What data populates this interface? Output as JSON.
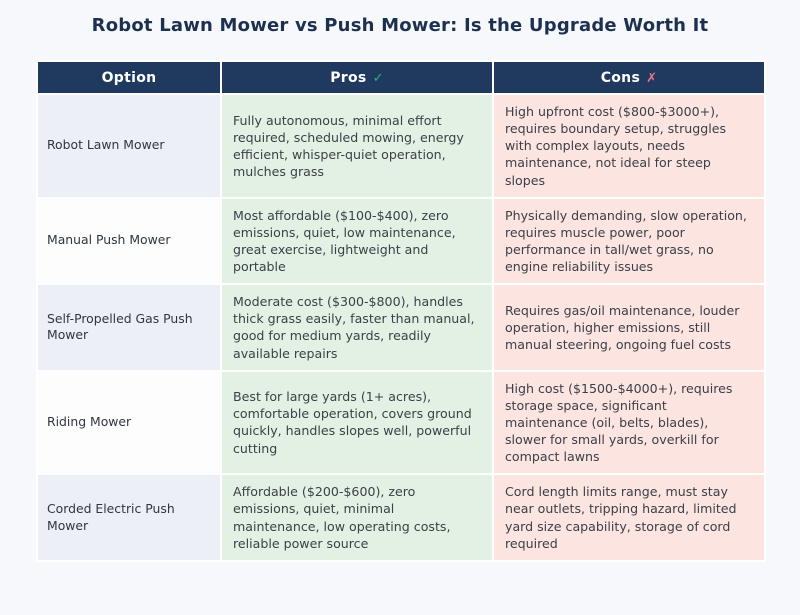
{
  "title": "Robot Lawn Mower vs Push Mower: Is the Upgrade Worth It",
  "colors": {
    "page_bg": "#f7f8fb",
    "title_text": "#1c3150",
    "header_bg": "#1f3a5e",
    "header_text": "#ffffff",
    "pros_cell_bg": "#e3f1e4",
    "cons_cell_bg": "#fce4e1",
    "option_cell_odd_bg": "#edeff6",
    "option_cell_even_bg": "#fdfdfe",
    "check_icon_green": "#2bb673",
    "x_icon_red": "#ec7386",
    "body_text": "#3b4048"
  },
  "table": {
    "headers": [
      {
        "label": "Option",
        "icon": ""
      },
      {
        "label": "Pros",
        "icon": "✓"
      },
      {
        "label": "Cons",
        "icon": "✗"
      }
    ],
    "rows": [
      {
        "option": "Robot Lawn Mower",
        "pros": "Fully autonomous, minimal effort required, scheduled mowing, energy efficient, whisper-quiet operation, mulches grass",
        "cons": "High upfront cost ($800-$3000+), requires boundary setup, struggles with complex layouts, needs maintenance, not ideal for steep slopes"
      },
      {
        "option": "Manual Push Mower",
        "pros": "Most affordable ($100-$400), zero emissions, quiet, low maintenance, great exercise, lightweight and portable",
        "cons": "Physically demanding, slow operation, requires muscle power, poor performance in tall/wet grass, no engine reliability issues"
      },
      {
        "option": "Self-Propelled Gas Push Mower",
        "pros": "Moderate cost ($300-$800), handles thick grass easily, faster than manual, good for medium yards, readily available repairs",
        "cons": "Requires gas/oil maintenance, louder operation, higher emissions, still manual steering, ongoing fuel costs"
      },
      {
        "option": "Riding Mower",
        "pros": "Best for large yards (1+ acres), comfortable operation, covers ground quickly, handles slopes well, powerful cutting",
        "cons": "High cost ($1500-$4000+), requires storage space, significant maintenance (oil, belts, blades), slower for small yards, overkill for compact lawns"
      },
      {
        "option": "Corded Electric Push Mower",
        "pros": "Affordable ($200-$600), zero emissions, quiet, minimal maintenance, low operating costs, reliable power source",
        "cons": "Cord length limits range, must stay near outlets, tripping hazard, limited yard size capability, storage of cord required"
      }
    ]
  },
  "chart_data": {
    "type": "table",
    "title": "Robot Lawn Mower vs Push Mower: Is the Upgrade Worth It",
    "columns": [
      "Option",
      "Pros ✓",
      "Cons ✗"
    ],
    "rows": [
      [
        "Robot Lawn Mower",
        "Fully autonomous, minimal effort required, scheduled mowing, energy efficient, whisper-quiet operation, mulches grass",
        "High upfront cost ($800-$3000+), requires boundary setup, struggles with complex layouts, needs maintenance, not ideal for steep slopes"
      ],
      [
        "Manual Push Mower",
        "Most affordable ($100-$400), zero emissions, quiet, low maintenance, great exercise, lightweight and portable",
        "Physically demanding, slow operation, requires muscle power, poor performance in tall/wet grass, no engine reliability issues"
      ],
      [
        "Self-Propelled Gas Push Mower",
        "Moderate cost ($300-$800), handles thick grass easily, faster than manual, good for medium yards, readily available repairs",
        "Requires gas/oil maintenance, louder operation, higher emissions, still manual steering, ongoing fuel costs"
      ],
      [
        "Riding Mower",
        "Best for large yards (1+ acres), comfortable operation, covers ground quickly, handles slopes well, powerful cutting",
        "High cost ($1500-$4000+), requires storage space, significant maintenance (oil, belts, blades), slower for small yards, overkill for compact lawns"
      ],
      [
        "Corded Electric Push Mower",
        "Affordable ($200-$600), zero emissions, quiet, minimal maintenance, low operating costs, reliable power source",
        "Cord length limits range, must stay near outlets, tripping hazard, limited yard size capability, storage of cord required"
      ]
    ],
    "layout": {
      "header_position": "top",
      "grid": "white 2px cell gaps",
      "row_striping": "option column alternates light blue-gray / white"
    }
  }
}
